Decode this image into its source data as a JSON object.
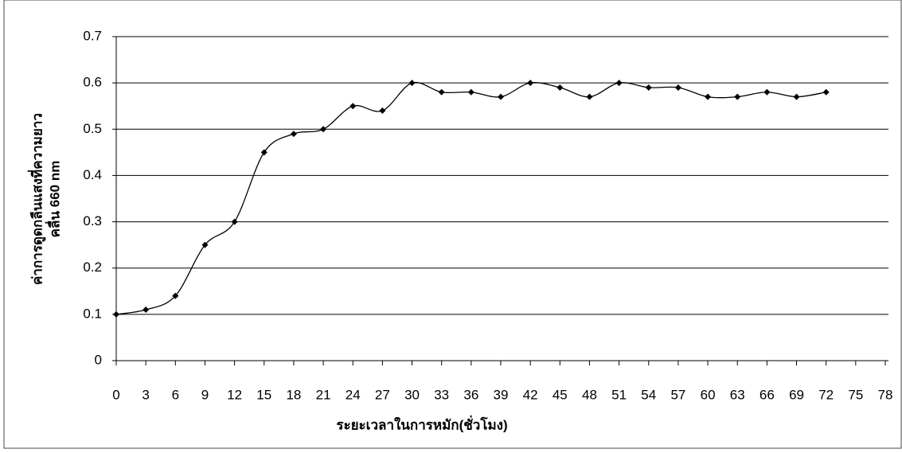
{
  "chart_data": {
    "type": "line",
    "xlabel": "ระยะเวลาในการหมัก(ชั่วโมง)",
    "ylabel": [
      "ค่าการดูดกลืนแสงที่ความยาว",
      "คลื่น 660 nm"
    ],
    "x": [
      0,
      3,
      6,
      9,
      12,
      15,
      18,
      21,
      24,
      27,
      30,
      33,
      36,
      39,
      42,
      45,
      48,
      51,
      54,
      57,
      60,
      63,
      66,
      69,
      72
    ],
    "values": [
      0.1,
      0.11,
      0.14,
      0.25,
      0.3,
      0.45,
      0.49,
      0.5,
      0.55,
      0.54,
      0.6,
      0.58,
      0.58,
      0.57,
      0.6,
      0.59,
      0.57,
      0.6,
      0.59,
      0.59,
      0.57,
      0.57,
      0.58,
      0.57,
      0.58
    ],
    "color": "#000000",
    "smooth": true,
    "xlim": [
      0,
      78
    ],
    "xticks": [
      0,
      3,
      6,
      9,
      12,
      15,
      18,
      21,
      24,
      27,
      30,
      33,
      36,
      39,
      42,
      45,
      48,
      51,
      54,
      57,
      60,
      63,
      66,
      69,
      72,
      75,
      78
    ],
    "ylim": [
      0,
      0.7
    ],
    "yticks": [
      0,
      0.1,
      0.2,
      0.3,
      0.4,
      0.5,
      0.6,
      0.7
    ],
    "grid": true
  }
}
